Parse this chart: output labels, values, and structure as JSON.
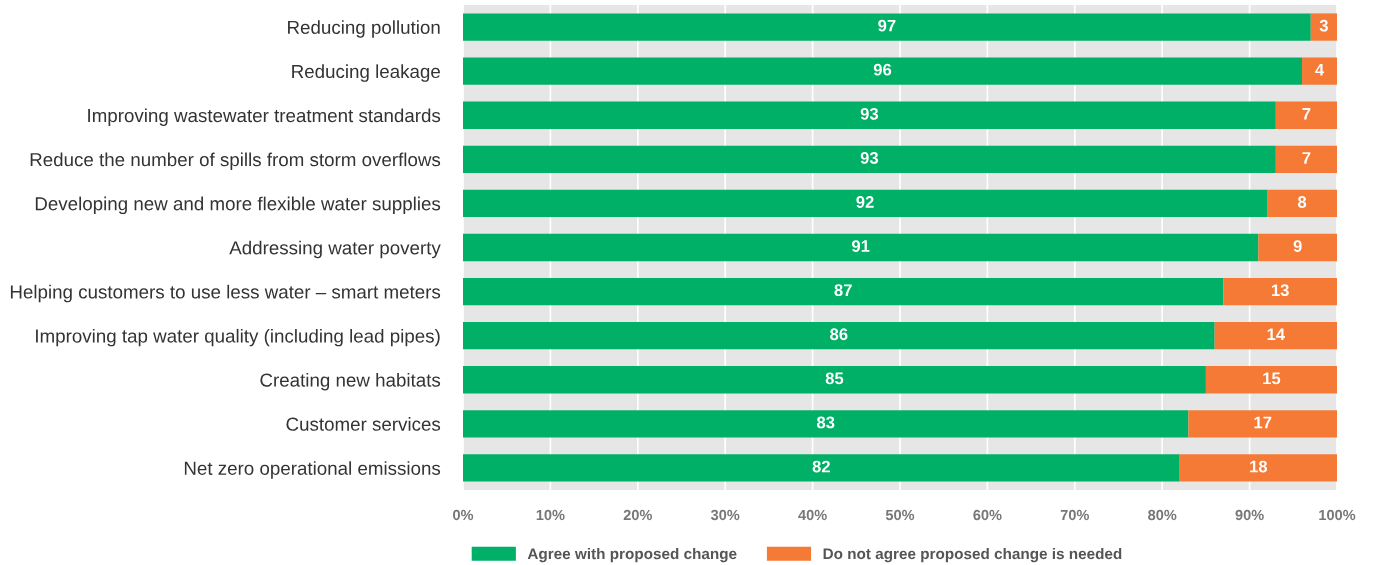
{
  "chart_data": {
    "type": "bar",
    "orientation": "horizontal",
    "stacked": true,
    "categories": [
      "Reducing pollution",
      "Reducing leakage",
      "Improving wastewater treatment standards",
      "Reduce the number of spills from storm overflows",
      "Developing new and more flexible water supplies",
      "Addressing water poverty",
      "Helping customers to use less water – smart meters",
      "Improving tap water quality (including lead pipes)",
      "Creating new habitats",
      "Customer services",
      "Net zero operational emissions"
    ],
    "series": [
      {
        "name": "Agree with proposed change",
        "color": "#00b067",
        "values": [
          97,
          96,
          93,
          93,
          92,
          91,
          87,
          86,
          85,
          83,
          82
        ]
      },
      {
        "name": "Do not agree proposed change is needed",
        "color": "#f47a36",
        "values": [
          3,
          4,
          7,
          7,
          8,
          9,
          13,
          14,
          15,
          17,
          18
        ]
      }
    ],
    "xlim": [
      0,
      100
    ],
    "xticks": [
      {
        "value": 0,
        "label": "0%"
      },
      {
        "value": 10,
        "label": "10%"
      },
      {
        "value": 20,
        "label": "20%"
      },
      {
        "value": 30,
        "label": "30%"
      },
      {
        "value": 40,
        "label": "40%"
      },
      {
        "value": 50,
        "label": "50%"
      },
      {
        "value": 60,
        "label": "60%"
      },
      {
        "value": 70,
        "label": "70%"
      },
      {
        "value": 80,
        "label": "80%"
      },
      {
        "value": 90,
        "label": "90%"
      },
      {
        "value": 100,
        "label": "100%"
      }
    ],
    "grid": "x",
    "legend": "bottom",
    "data_labels": true
  }
}
